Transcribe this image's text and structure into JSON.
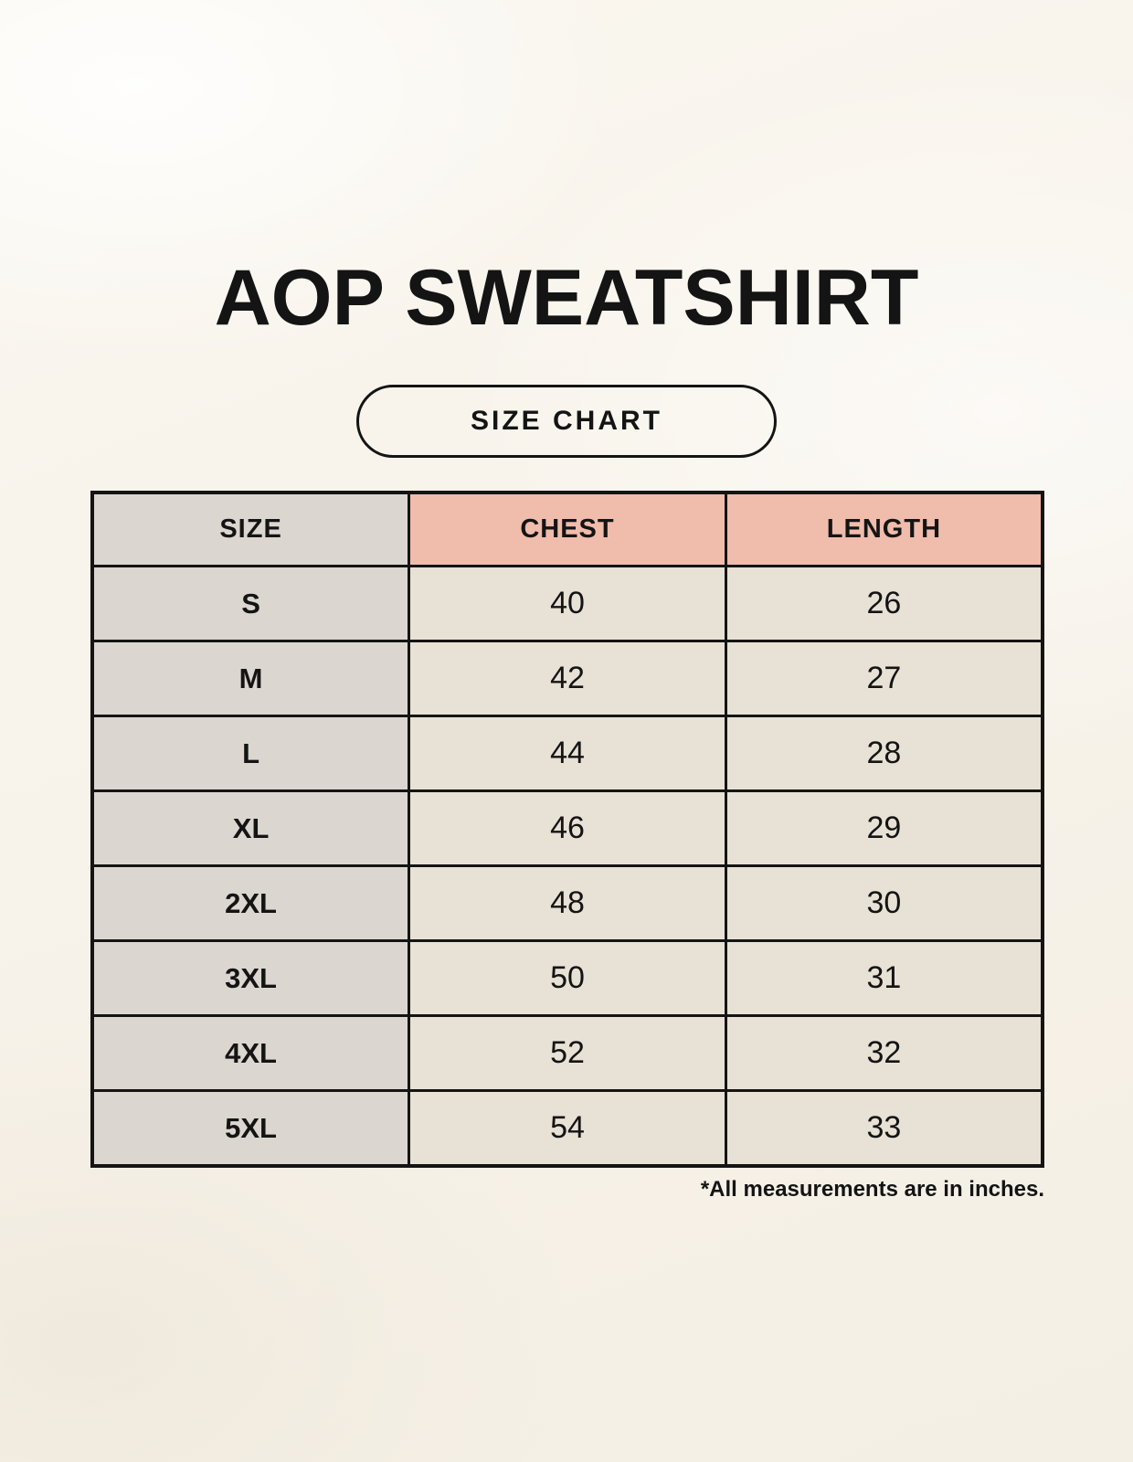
{
  "page": {
    "title": "AOP SWEATSHIRT",
    "badge_label": "SIZE CHART",
    "footnote": "*All measurements are in inches."
  },
  "chart_data": {
    "type": "table",
    "title": "AOP SWEATSHIRT",
    "subtitle": "SIZE CHART",
    "columns": [
      "SIZE",
      "CHEST",
      "LENGTH"
    ],
    "rows": [
      {
        "size": "S",
        "chest": "40",
        "length": "26"
      },
      {
        "size": "M",
        "chest": "42",
        "length": "27"
      },
      {
        "size": "L",
        "chest": "44",
        "length": "28"
      },
      {
        "size": "XL",
        "chest": "46",
        "length": "29"
      },
      {
        "size": "2XL",
        "chest": "48",
        "length": "30"
      },
      {
        "size": "3XL",
        "chest": "50",
        "length": "31"
      },
      {
        "size": "4XL",
        "chest": "52",
        "length": "32"
      },
      {
        "size": "5XL",
        "chest": "54",
        "length": "33"
      }
    ],
    "units": "inches",
    "note": "*All measurements are in inches."
  },
  "colors": {
    "background": "#f8f4ec",
    "size_column_bg": "#dcd6d0",
    "accent_header_bg": "#f0bcab",
    "data_cell_bg": "#e8e1d5",
    "border": "#141414",
    "text": "#141414"
  }
}
